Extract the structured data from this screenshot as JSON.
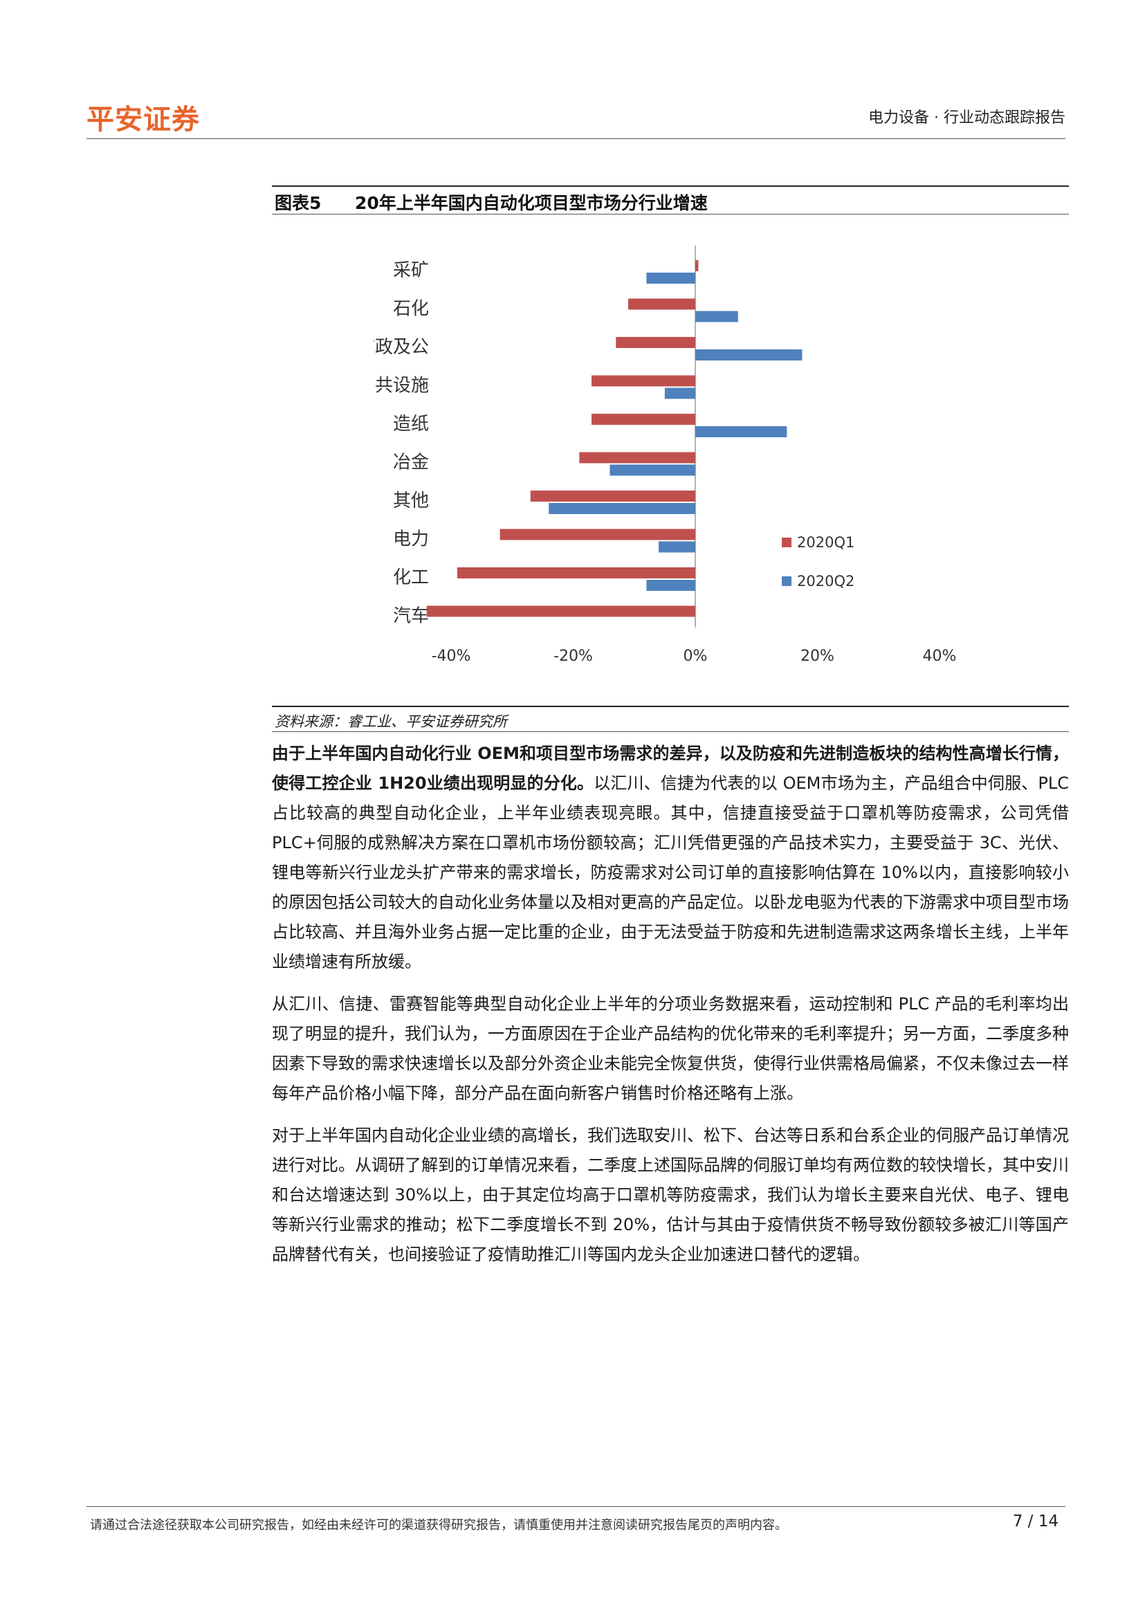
{
  "header": {
    "logo_text": "平安证券",
    "report_type": "电力设备 · 行业动态跟踪报告"
  },
  "figure": {
    "label": "图表5",
    "title": "20年上半年国内自动化项目型市场分行业增速",
    "source": "资料来源：睿工业、平安证券研究所"
  },
  "colors": {
    "series_1": "#c0504d",
    "series_2": "#4f81bd",
    "brand": "#e8632b"
  },
  "chart_data": {
    "type": "bar",
    "orientation": "horizontal",
    "title": "",
    "xlabel": "",
    "ylabel": "",
    "categories": [
      "采矿",
      "石化",
      "市政及公",
      "共设施",
      "造纸",
      "冶金",
      "其他",
      "电力",
      "化工",
      "汽车"
    ],
    "series": [
      {
        "name": "2020Q1",
        "values": [
          0.5,
          -11,
          -13,
          -17,
          -17,
          -19,
          -27,
          -32,
          -39,
          -44
        ]
      },
      {
        "name": "2020Q2",
        "values": [
          -8,
          7,
          17.5,
          -5,
          15,
          -14,
          -24,
          -6,
          -8,
          0
        ]
      }
    ],
    "xlim": [
      -40,
      40
    ],
    "xticks": [
      "-40%",
      "-20%",
      "0%",
      "20%",
      "40%"
    ],
    "legend_position": "right",
    "grid": false
  },
  "paragraphs": [
    {
      "bold": "由于上半年国内自动化行业 OEM和项目型市场需求的差异，以及防疫和先进制造板块的结构性高增长行情，使得工控企业 1H20业绩出现明显的分化。",
      "text": "以汇川、信捷为代表的以 OEM市场为主，产品组合中伺服、PLC 占比较高的典型自动化企业，上半年业绩表现亮眼。其中，信捷直接受益于口罩机等防疫需求，公司凭借 PLC+伺服的成熟解决方案在口罩机市场份额较高；汇川凭借更强的产品技术实力，主要受益于 3C、光伏、锂电等新兴行业龙头扩产带来的需求增长，防疫需求对公司订单的直接影响估算在 10%以内，直接影响较小的原因包括公司较大的自动化业务体量以及相对更高的产品定位。以卧龙电驱为代表的下游需求中项目型市场占比较高、并且海外业务占据一定比重的企业，由于无法受益于防疫和先进制造需求这两条增长主线，上半年业绩增速有所放缓。"
    },
    {
      "bold": "",
      "text": "从汇川、信捷、雷赛智能等典型自动化企业上半年的分项业务数据来看，运动控制和 PLC 产品的毛利率均出现了明显的提升，我们认为，一方面原因在于企业产品结构的优化带来的毛利率提升；另一方面，二季度多种因素下导致的需求快速增长以及部分外资企业未能完全恢复供货，使得行业供需格局偏紧，不仅未像过去一样每年产品价格小幅下降，部分产品在面向新客户销售时价格还略有上涨。"
    },
    {
      "bold": "",
      "text": "对于上半年国内自动化企业业绩的高增长，我们选取安川、松下、台达等日系和台系企业的伺服产品订单情况进行对比。从调研了解到的订单情况来看，二季度上述国际品牌的伺服订单均有两位数的较快增长，其中安川和台达增速达到 30%以上，由于其定位均高于口罩机等防疫需求，我们认为增长主要来自光伏、电子、锂电等新兴行业需求的推动；松下二季度增长不到 20%，估计与其由于疫情供货不畅导致份额较多被汇川等国产品牌替代有关，也间接验证了疫情助推汇川等国内龙头企业加速进口替代的逻辑。"
    }
  ],
  "footer": {
    "disclaimer": "请通过合法途径获取本公司研究报告，如经由未经许可的渠道获得研究报告，请慎重使用并注意阅读研究报告尾页的声明内容。",
    "page_number": "7 / 14"
  }
}
